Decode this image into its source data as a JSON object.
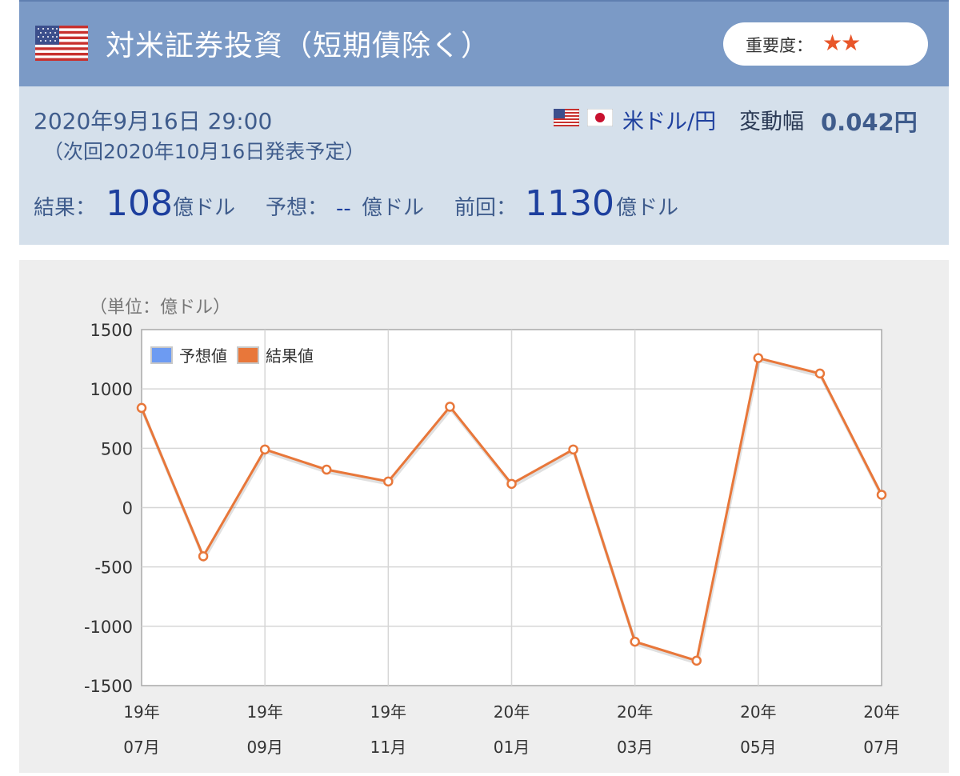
{
  "header": {
    "title": "対米証券投資（短期債除く）",
    "importance_label": "重要度：",
    "importance_stars": "★★",
    "importance_level": 2,
    "flag_icon": "us-flag-icon"
  },
  "info": {
    "date": "2020年9月16日 29:00",
    "next": "（次回2020年10月16日発表予定）",
    "pair": "米ドル/円",
    "volatility_label": "変動幅",
    "volatility_value": "0.042円",
    "result_label": "結果：",
    "result_value": "108",
    "result_unit": "億ドル",
    "forecast_label": "予想：",
    "forecast_value": "--",
    "forecast_unit": "億ドル",
    "previous_label": "前回：",
    "previous_value": "1130",
    "previous_unit": "億ドル"
  },
  "colors": {
    "header_bg": "#7b9ac6",
    "info_bg": "#d5e0eb",
    "forecast_series": "#6d9bf2",
    "result_series": "#e8773a"
  },
  "chart_data": {
    "type": "line",
    "unit_label": "（単位：億ドル）",
    "ylim": [
      -1500,
      1500
    ],
    "yticks": [
      1500,
      1000,
      500,
      0,
      -500,
      -1000,
      -1500
    ],
    "xtick_labels": [
      {
        "top": "19年",
        "bottom": "07月"
      },
      {
        "top": "19年",
        "bottom": "09月"
      },
      {
        "top": "19年",
        "bottom": "11月"
      },
      {
        "top": "20年",
        "bottom": "01月"
      },
      {
        "top": "20年",
        "bottom": "03月"
      },
      {
        "top": "20年",
        "bottom": "05月"
      },
      {
        "top": "20年",
        "bottom": "07月"
      }
    ],
    "legend": [
      {
        "name": "予想値",
        "color": "#6d9bf2"
      },
      {
        "name": "結果値",
        "color": "#e8773a"
      }
    ],
    "legend_position": "top-left",
    "grid": true,
    "series": [
      {
        "name": "予想値",
        "values": []
      },
      {
        "name": "結果値",
        "values": [
          840,
          -410,
          490,
          320,
          220,
          850,
          200,
          490,
          -1130,
          -1290,
          1260,
          1130,
          108
        ]
      }
    ]
  }
}
